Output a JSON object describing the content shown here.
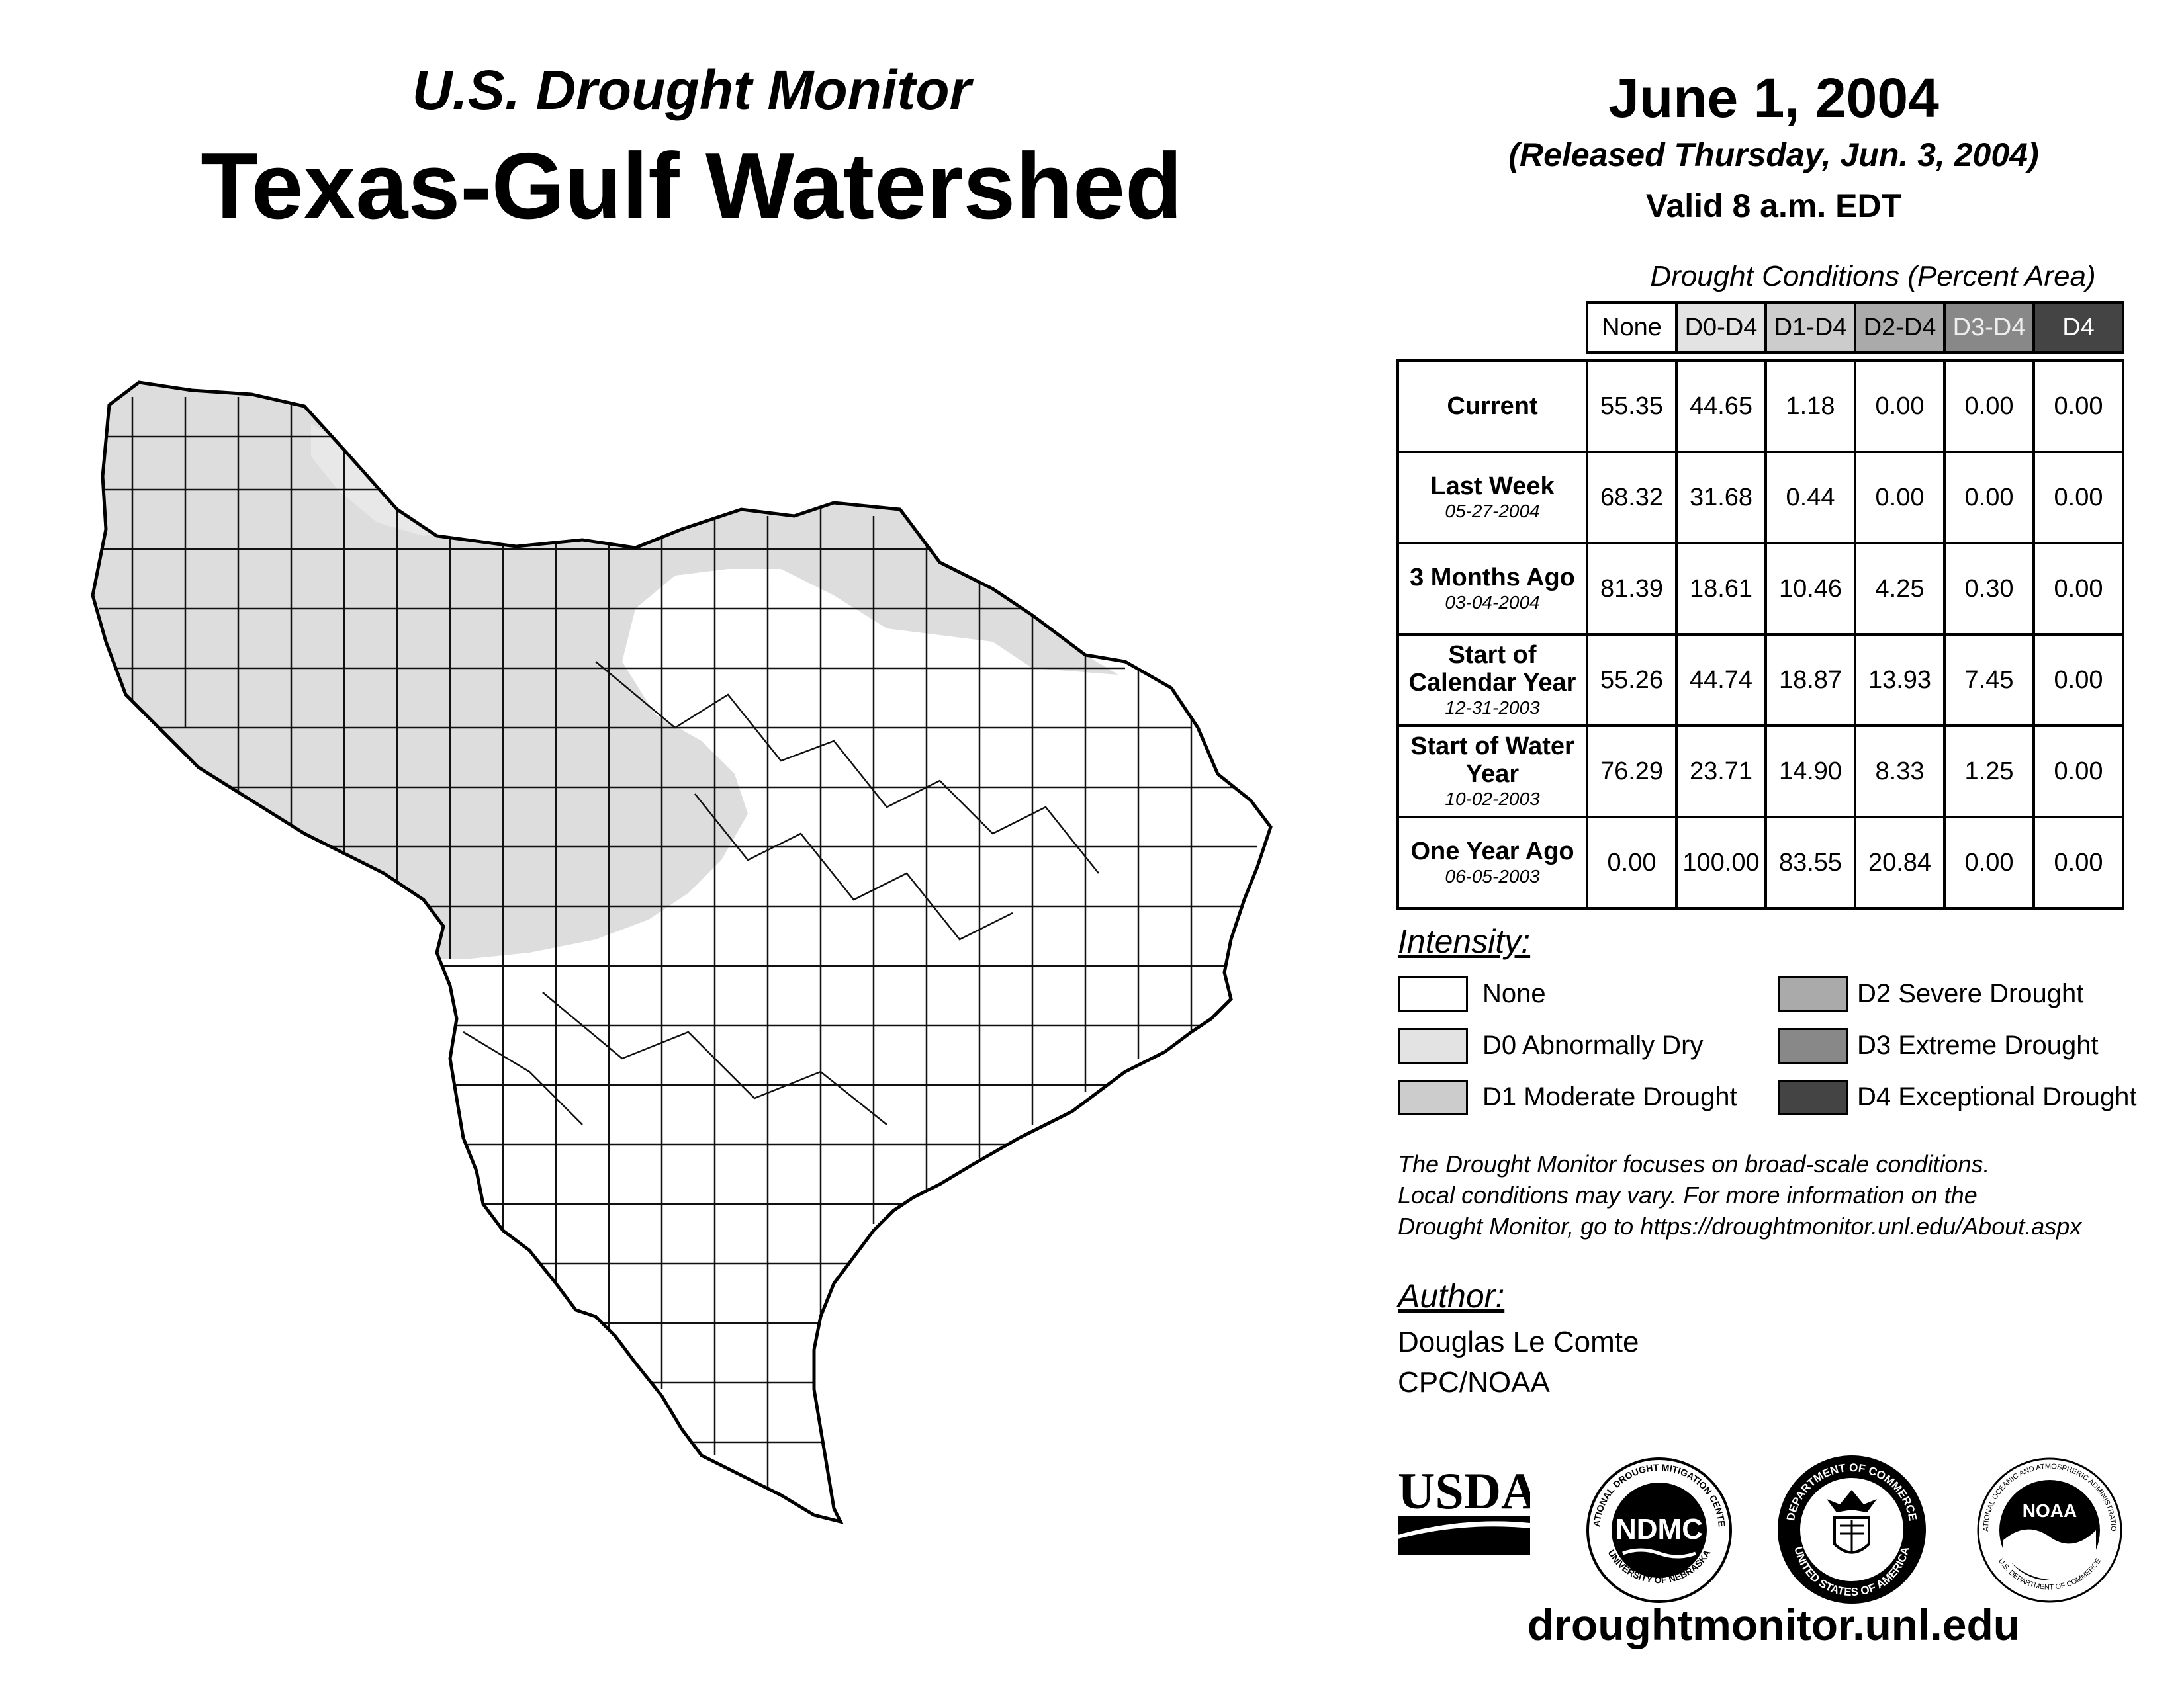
{
  "header": {
    "subtitle": "U.S. Drought Monitor",
    "title": "Texas-Gulf Watershed",
    "date": "June 1, 2004",
    "released": "(Released Thursday, Jun. 3, 2004)",
    "valid": "Valid 8 a.m. EDT"
  },
  "table": {
    "caption": "Drought Conditions (Percent Area)",
    "columns": [
      "None",
      "D0-D4",
      "D1-D4",
      "D2-D4",
      "D3-D4",
      "D4"
    ],
    "rows": [
      {
        "label": "Current",
        "date": "",
        "values": [
          "55.35",
          "44.65",
          "1.18",
          "0.00",
          "0.00",
          "0.00"
        ]
      },
      {
        "label": "Last Week",
        "date": "05-27-2004",
        "values": [
          "68.32",
          "31.68",
          "0.44",
          "0.00",
          "0.00",
          "0.00"
        ]
      },
      {
        "label": "3 Months Ago",
        "date": "03-04-2004",
        "values": [
          "81.39",
          "18.61",
          "10.46",
          "4.25",
          "0.30",
          "0.00"
        ]
      },
      {
        "label": "Start of Calendar Year",
        "date": "12-31-2003",
        "values": [
          "55.26",
          "44.74",
          "18.87",
          "13.93",
          "7.45",
          "0.00"
        ]
      },
      {
        "label": "Start of Water Year",
        "date": "10-02-2003",
        "values": [
          "76.29",
          "23.71",
          "14.90",
          "8.33",
          "1.25",
          "0.00"
        ]
      },
      {
        "label": "One Year Ago",
        "date": "06-05-2003",
        "values": [
          "0.00",
          "100.00",
          "83.55",
          "20.84",
          "0.00",
          "0.00"
        ]
      }
    ]
  },
  "legend": {
    "heading": "Intensity:",
    "items": [
      {
        "label": "None",
        "color": "#ffffff"
      },
      {
        "label": "D0 Abnormally Dry",
        "color": "#e3e3e3"
      },
      {
        "label": "D1 Moderate Drought",
        "color": "#cccccc"
      },
      {
        "label": "D2 Severe Drought",
        "color": "#aaaaaa"
      },
      {
        "label": "D3 Extreme Drought",
        "color": "#888888"
      },
      {
        "label": "D4 Exceptional Drought",
        "color": "#444444"
      }
    ]
  },
  "note": {
    "line1": "The Drought Monitor focuses on broad-scale conditions.",
    "line2": "Local conditions may vary. For more information on the",
    "line3": "Drought Monitor, go to https://droughtmonitor.unl.edu/About.aspx"
  },
  "author": {
    "heading": "Author:",
    "name": "Douglas Le Comte",
    "org": "CPC/NOAA"
  },
  "logos": {
    "usda": "USDA",
    "ndmc": "NDMC",
    "ndmc_top": "NATIONAL DROUGHT MITIGATION CENTER",
    "ndmc_bottom": "UNIVERSITY OF NEBRASKA",
    "doc_top": "DEPARTMENT OF COMMERCE",
    "doc_bottom": "UNITED STATES OF AMERICA",
    "noaa": "NOAA",
    "noaa_top": "NATIONAL OCEANIC AND ATMOSPHERIC ADMINISTRATION",
    "noaa_bottom": "U.S. DEPARTMENT OF COMMERCE"
  },
  "footer": {
    "url": "droughtmonitor.unl.edu"
  }
}
